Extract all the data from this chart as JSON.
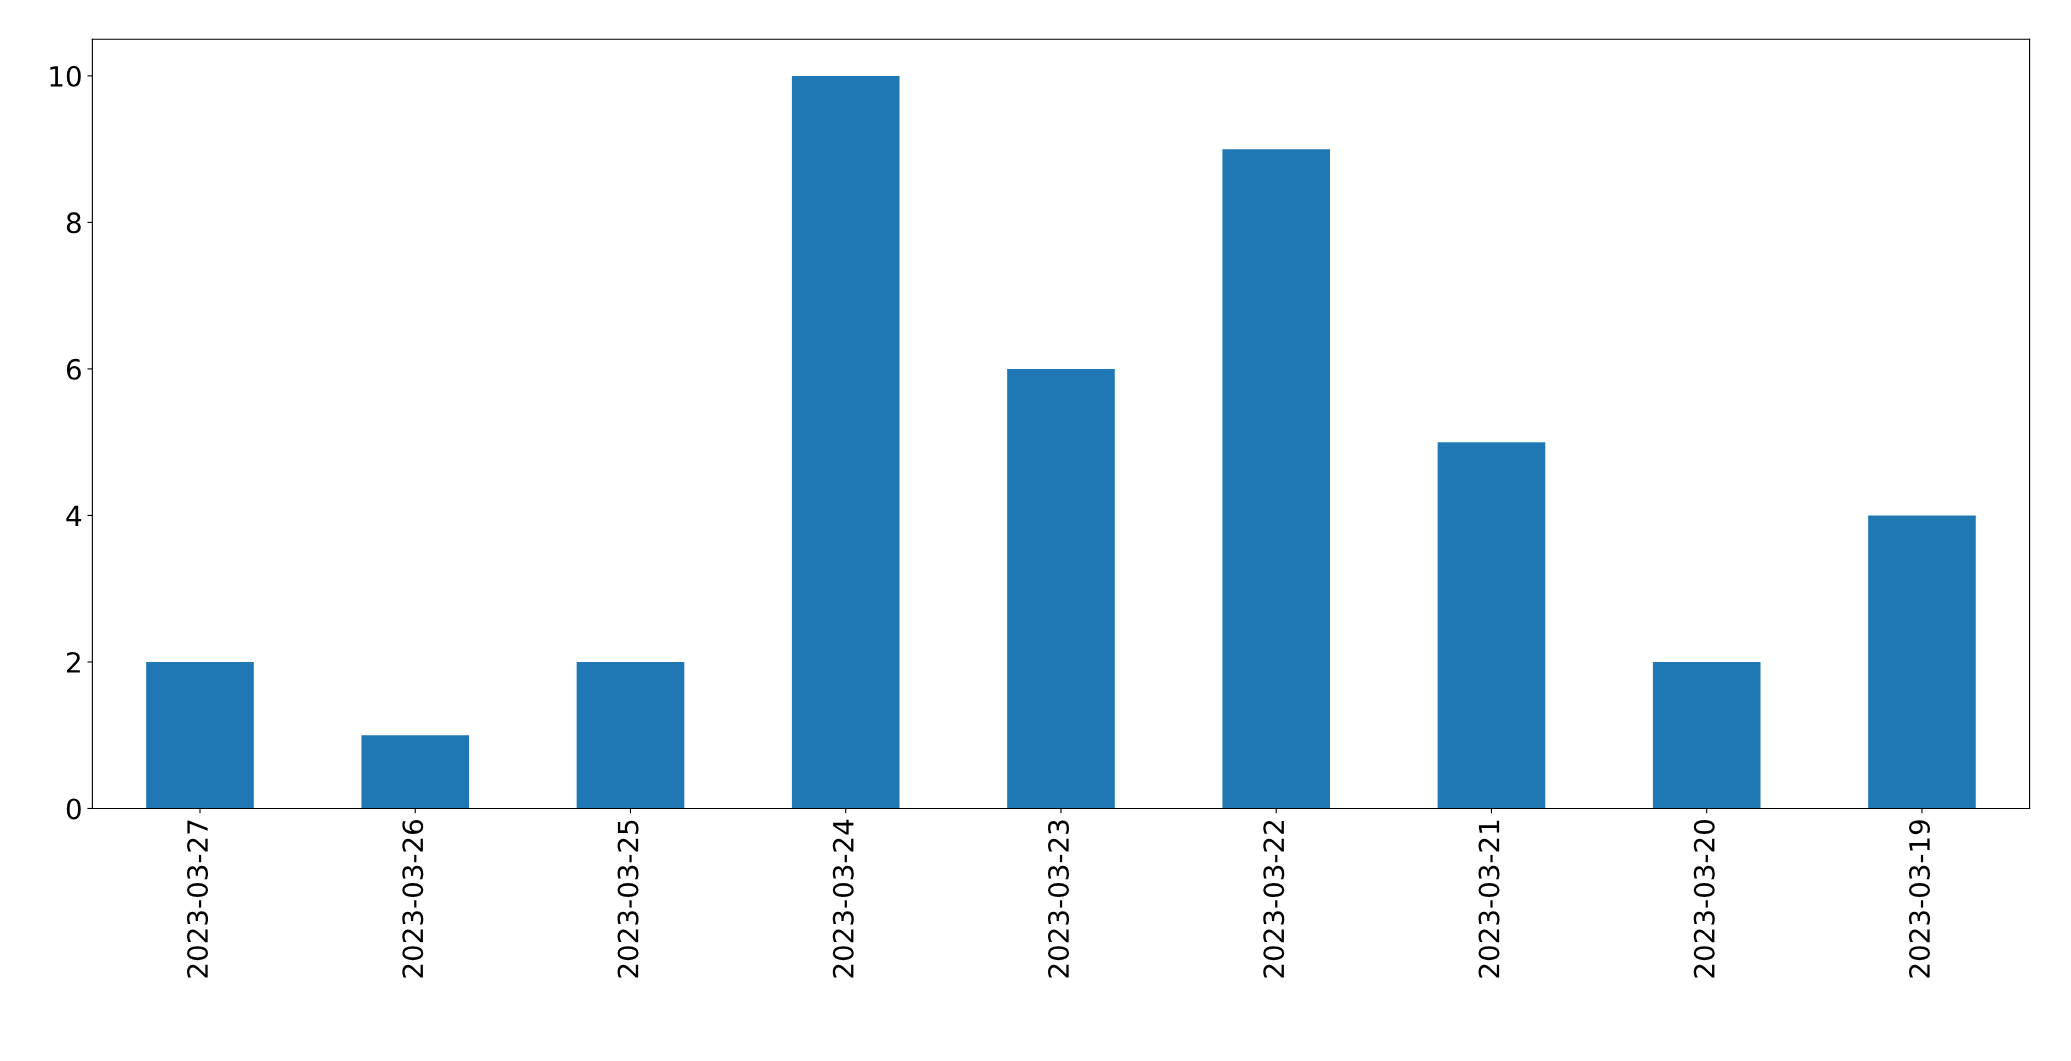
{
  "chart_data": {
    "type": "bar",
    "categories": [
      "2023-03-27",
      "2023-03-26",
      "2023-03-25",
      "2023-03-24",
      "2023-03-23",
      "2023-03-22",
      "2023-03-21",
      "2023-03-20",
      "2023-03-19"
    ],
    "values": [
      2,
      1,
      2,
      10,
      6,
      9,
      5,
      2,
      4
    ],
    "color": "#1f77b4",
    "ylim": [
      0,
      10.5
    ],
    "yticks": [
      0,
      2,
      4,
      6,
      8,
      10
    ],
    "grid": false,
    "legend": false
  }
}
